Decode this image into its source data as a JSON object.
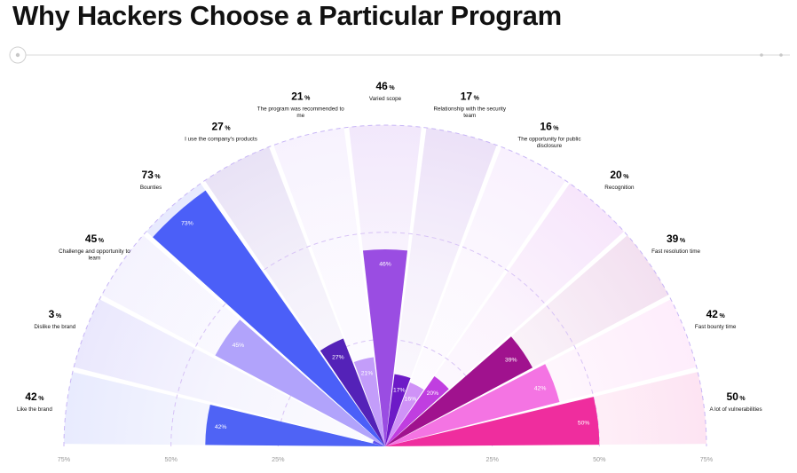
{
  "page": {
    "title": "Why Hackers Choose a Particular Program"
  },
  "chart_data": {
    "type": "polar-bar",
    "title": "Why Hackers Choose a Particular Program",
    "unit": "%",
    "categories": [
      "Like the brand",
      "Dislike the brand",
      "Challenge and opportunity to learn",
      "Bounties",
      "I use the company's products",
      "The program was recommended to me",
      "Varied scope",
      "Relationship with the security team",
      "The opportunity for public disclosure",
      "Recognition",
      "Fast resolution time",
      "Fast bounty time",
      "A lot of vulnerabilities"
    ],
    "values": [
      42,
      3,
      45,
      73,
      27,
      21,
      46,
      17,
      16,
      20,
      39,
      42,
      50
    ],
    "inner_labels": [
      "42%",
      "3%",
      "45%",
      "73%",
      "27%",
      "21%",
      "46%",
      "17%",
      "16%",
      "20%",
      "39%",
      "42%",
      "50%"
    ],
    "percent_sign": "%",
    "colors": [
      "#4f63f5",
      "#5f4ff0",
      "#b1a3fb",
      "#4b5ff8",
      "#5422b8",
      "#c39dfa",
      "#9a4de2",
      "#6d1ac7",
      "#cf92f7",
      "#c03ee0",
      "#a0128e",
      "#f474e3",
      "#ef2d9e"
    ],
    "radial_axis": {
      "range": [
        0,
        75
      ],
      "ticks": [
        "75%",
        "50%",
        "25%",
        "25%",
        "50%",
        "75%"
      ],
      "gridlines": [
        25,
        50,
        75
      ]
    }
  }
}
